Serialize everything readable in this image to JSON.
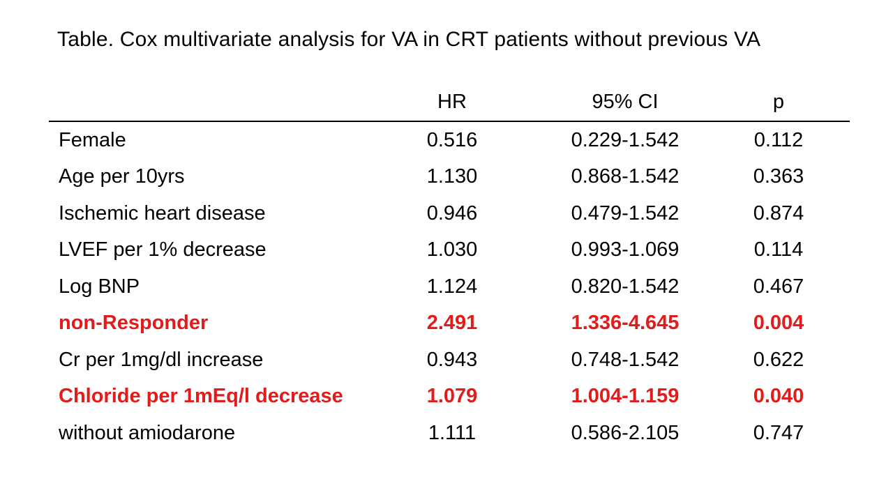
{
  "title": "Table. Cox multivariate analysis for VA in CRT patients without previous VA",
  "colors": {
    "background": "#ffffff",
    "text": "#000000",
    "rule": "#000000",
    "highlight_red": "#e21b1b"
  },
  "table": {
    "columns": [
      {
        "key": "label",
        "label": ""
      },
      {
        "key": "hr",
        "label": "HR"
      },
      {
        "key": "ci",
        "label": "95% CI"
      },
      {
        "key": "p",
        "label": "p"
      }
    ],
    "rows": [
      {
        "label": "Female",
        "hr": "0.516",
        "ci": "0.229-1.542",
        "p": "0.112",
        "highlight": false
      },
      {
        "label": "Age per 10yrs",
        "hr": "1.130",
        "ci": "0.868-1.542",
        "p": "0.363",
        "highlight": false
      },
      {
        "label": "Ischemic heart disease",
        "hr": "0.946",
        "ci": "0.479-1.542",
        "p": "0.874",
        "highlight": false
      },
      {
        "label": "LVEF per 1% decrease",
        "hr": "1.030",
        "ci": "0.993-1.069",
        "p": "0.114",
        "highlight": false
      },
      {
        "label": "Log BNP",
        "hr": "1.124",
        "ci": "0.820-1.542",
        "p": "0.467",
        "highlight": false
      },
      {
        "label": "non-Responder",
        "hr": "2.491",
        "ci": "1.336-4.645",
        "p": "0.004",
        "highlight": true
      },
      {
        "label": "Cr per 1mg/dl increase",
        "hr": "0.943",
        "ci": "0.748-1.542",
        "p": "0.622",
        "highlight": false
      },
      {
        "label": "Chloride per 1mEq/l decrease",
        "hr": "1.079",
        "ci": "1.004-1.159",
        "p": "0.040",
        "highlight": true
      },
      {
        "label": "without amiodarone",
        "hr": "1.111",
        "ci": "0.586-2.105",
        "p": "0.747",
        "highlight": false
      }
    ]
  }
}
